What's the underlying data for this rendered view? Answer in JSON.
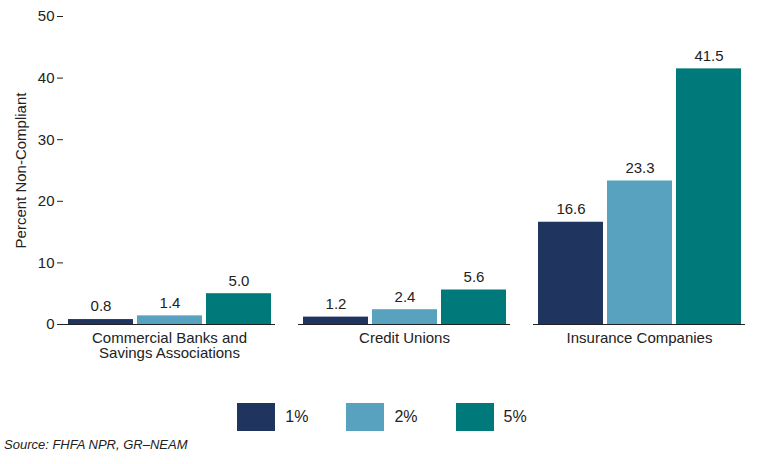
{
  "chart_data": {
    "type": "bar",
    "categories": [
      "Commercial Banks and\nSavings Associations",
      "Credit Unions",
      "Insurance Companies"
    ],
    "series": [
      {
        "name": "1%",
        "color": "#1f3560",
        "values": [
          0.8,
          1.2,
          16.6
        ],
        "value_labels": [
          "0.8",
          "1.2",
          "16.6"
        ]
      },
      {
        "name": "2%",
        "color": "#58a2c0",
        "values": [
          1.4,
          2.4,
          23.3
        ],
        "value_labels": [
          "1.4",
          "2.4",
          "23.3"
        ]
      },
      {
        "name": "5%",
        "color": "#00797a",
        "values": [
          5,
          5.6,
          41.5
        ],
        "value_labels": [
          "5.0",
          "5.6",
          "41.5"
        ]
      }
    ],
    "y_label": "Percent Non-Compliant",
    "ylim": [
      0,
      50
    ],
    "yticks": [
      0,
      10,
      20,
      30,
      40,
      50
    ],
    "data_labels": true,
    "legend": "bottom",
    "grid": false,
    "source": "Source: FHFA NPR, GR–NEAM"
  }
}
